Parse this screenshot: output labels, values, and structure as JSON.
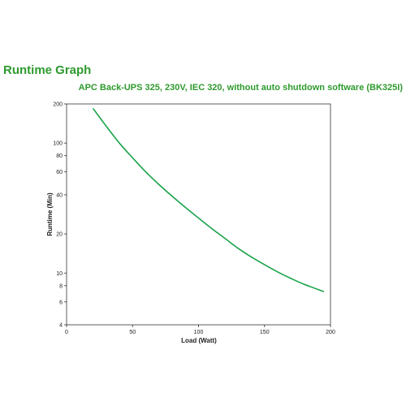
{
  "page": {
    "title": "Runtime Graph"
  },
  "chart_data": {
    "type": "line",
    "title": "APC Back-UPS 325, 230V, IEC 320, without auto shutdown software (BK325I)",
    "xlabel": "Load (Watt)",
    "ylabel": "Runtime (Min)",
    "xlim": [
      0,
      200
    ],
    "ylim": [
      4,
      200
    ],
    "y_scale": "log",
    "grid": false,
    "x_ticks": [
      0,
      50,
      100,
      150,
      200
    ],
    "y_ticks": [
      4,
      6,
      8,
      10,
      20,
      40,
      60,
      80,
      100,
      200
    ],
    "series": [
      {
        "color": "#1aa34a",
        "x": [
          20,
          30,
          40,
          50,
          60,
          70,
          80,
          90,
          100,
          110,
          120,
          130,
          140,
          150,
          160,
          170,
          180,
          195
        ],
        "y": [
          185,
          135,
          100,
          77,
          60,
          48,
          39,
          32,
          26.5,
          22,
          18.5,
          15.5,
          13.3,
          11.6,
          10.2,
          9.1,
          8.2,
          7.2
        ]
      }
    ]
  }
}
